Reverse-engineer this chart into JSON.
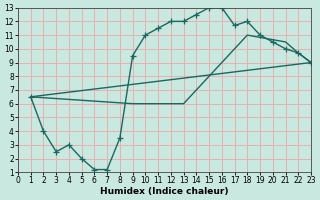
{
  "xlabel": "Humidex (Indice chaleur)",
  "bg_color": "#c8e8e0",
  "grid_color": "#e8b0b0",
  "line_color": "#1a6860",
  "xlim": [
    0,
    23
  ],
  "ylim": [
    1,
    13
  ],
  "xticks": [
    0,
    1,
    2,
    3,
    4,
    5,
    6,
    7,
    8,
    9,
    10,
    11,
    12,
    13,
    14,
    15,
    16,
    17,
    18,
    19,
    20,
    21,
    22,
    23
  ],
  "yticks": [
    1,
    2,
    3,
    4,
    5,
    6,
    7,
    8,
    9,
    10,
    11,
    12,
    13
  ],
  "curve1_x": [
    1,
    2,
    3,
    4,
    5,
    6,
    7,
    8,
    9,
    10,
    11,
    12,
    13,
    14,
    15,
    16,
    17,
    18,
    19,
    20,
    21,
    22,
    23
  ],
  "curve1_y": [
    6.5,
    4,
    2.5,
    3,
    2,
    1.2,
    1.2,
    3.5,
    9.5,
    11,
    11.5,
    12,
    12,
    12.5,
    13,
    13,
    11.7,
    12,
    11,
    10.5,
    10,
    9.7,
    9
  ],
  "curve2_x": [
    1,
    23
  ],
  "curve2_y": [
    6.5,
    9
  ],
  "curve3_x": [
    1,
    9,
    13,
    18,
    21,
    22,
    23
  ],
  "curve3_y": [
    6.5,
    6,
    6,
    11,
    10.5,
    9.7,
    9
  ]
}
